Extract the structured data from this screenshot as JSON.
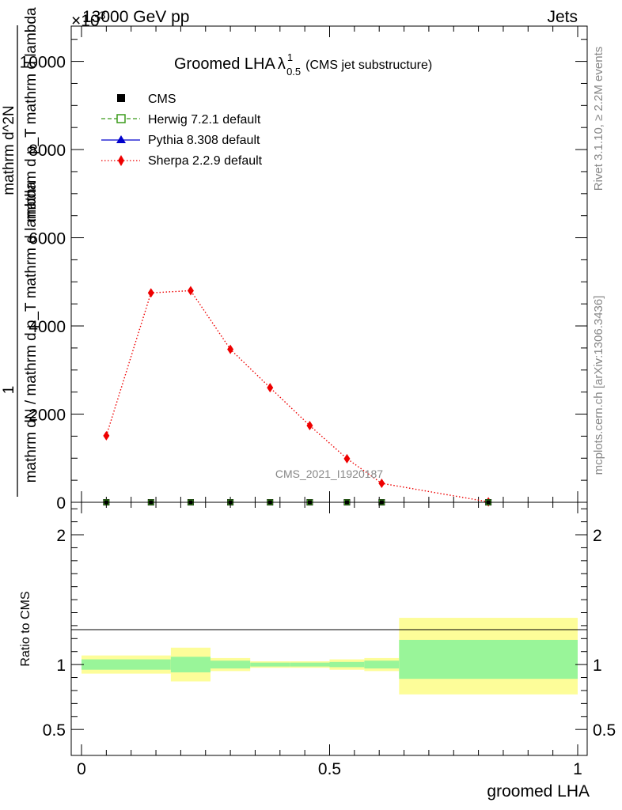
{
  "header": {
    "left": "13000 GeV pp",
    "right": "Jets",
    "exponent": "×10",
    "exponent_power": "3"
  },
  "side_text": {
    "rivet": "Rivet 3.1.10, ≥ 2.2M events",
    "mcplots": "mcplots.cern.ch [arXiv:1306.3436]"
  },
  "plot_title": {
    "main": "Groomed LHA",
    "lambda": "λ",
    "sup": "1",
    "sub": "0.5",
    "suffix": "(CMS jet substructure)"
  },
  "watermark": "CMS_2021_I1920187",
  "y_axis_label": {
    "line1": "1",
    "line2": "mathrm dN / mathrm d p_T mathrm d lambda",
    "line3": "mathrm d^2N",
    "line4": "mathrm d p_T mathrm d lambda"
  },
  "ratio_ylabel": "Ratio to CMS",
  "xlabel": "groomed LHA",
  "legend": [
    {
      "label": "CMS",
      "color": "#000000",
      "marker": "square-filled",
      "line": "none"
    },
    {
      "label": "Herwig 7.2.1 default",
      "color": "#3a9b1a",
      "marker": "square-open",
      "line": "dashed"
    },
    {
      "label": "Pythia 8.308 default",
      "color": "#0000cc",
      "marker": "triangle-filled",
      "line": "solid"
    },
    {
      "label": "Sherpa 2.2.9 default",
      "color": "#ee0000",
      "marker": "diamond-filled",
      "line": "dotted"
    }
  ],
  "chart_data": [
    {
      "type": "line",
      "panel": "main",
      "xlim": [
        0,
        1
      ],
      "ylim": [
        0,
        10800
      ],
      "y_ticks": [
        0,
        2000,
        4000,
        6000,
        8000,
        10000
      ],
      "y_tick_labels": [
        "0",
        "2000",
        "4000",
        "6000",
        "8000",
        "10000"
      ],
      "series": [
        {
          "name": "Sherpa 2.2.9 default",
          "color": "#ee0000",
          "x": [
            0.05,
            0.14,
            0.22,
            0.3,
            0.38,
            0.46,
            0.535,
            0.605,
            0.82
          ],
          "y": [
            1510,
            4750,
            4800,
            3470,
            2600,
            1740,
            990,
            430,
            10
          ]
        },
        {
          "name": "CMS",
          "color": "#000000",
          "x": [
            0.05,
            0.14,
            0.22,
            0.3,
            0.38,
            0.46,
            0.535,
            0.605,
            0.82
          ],
          "y": [
            0,
            0,
            0,
            0,
            0,
            0,
            0,
            0,
            0
          ]
        }
      ]
    },
    {
      "type": "area",
      "panel": "ratio",
      "xlim": [
        0,
        1
      ],
      "ylim": [
        0.3,
        2.25
      ],
      "y_ticks": [
        0.5,
        1,
        2
      ],
      "y_tick_labels": [
        "0.5",
        "1",
        "2"
      ],
      "x_ticks": [
        0,
        0.5,
        1
      ],
      "x_tick_labels": [
        "0",
        "0.5",
        "1"
      ],
      "reference": 1,
      "bins": [
        {
          "x0": 0.0,
          "x1": 0.18,
          "inner": [
            0.96,
            1.04
          ],
          "outer": [
            0.93,
            1.07
          ]
        },
        {
          "x0": 0.18,
          "x1": 0.26,
          "inner": [
            0.94,
            1.06
          ],
          "outer": [
            0.87,
            1.13
          ]
        },
        {
          "x0": 0.26,
          "x1": 0.34,
          "inner": [
            0.97,
            1.03
          ],
          "outer": [
            0.95,
            1.05
          ]
        },
        {
          "x0": 0.34,
          "x1": 0.42,
          "inner": [
            0.985,
            1.015
          ],
          "outer": [
            0.975,
            1.025
          ]
        },
        {
          "x0": 0.42,
          "x1": 0.5,
          "inner": [
            0.985,
            1.015
          ],
          "outer": [
            0.975,
            1.025
          ]
        },
        {
          "x0": 0.5,
          "x1": 0.57,
          "inner": [
            0.98,
            1.02
          ],
          "outer": [
            0.96,
            1.04
          ]
        },
        {
          "x0": 0.57,
          "x1": 0.64,
          "inner": [
            0.97,
            1.03
          ],
          "outer": [
            0.95,
            1.05
          ]
        },
        {
          "x0": 0.64,
          "x1": 1.0,
          "inner": [
            0.89,
            1.19
          ],
          "outer": [
            0.77,
            1.36
          ]
        }
      ],
      "colors": {
        "inner": "#99f599",
        "outer": "#fdfd99"
      }
    }
  ]
}
